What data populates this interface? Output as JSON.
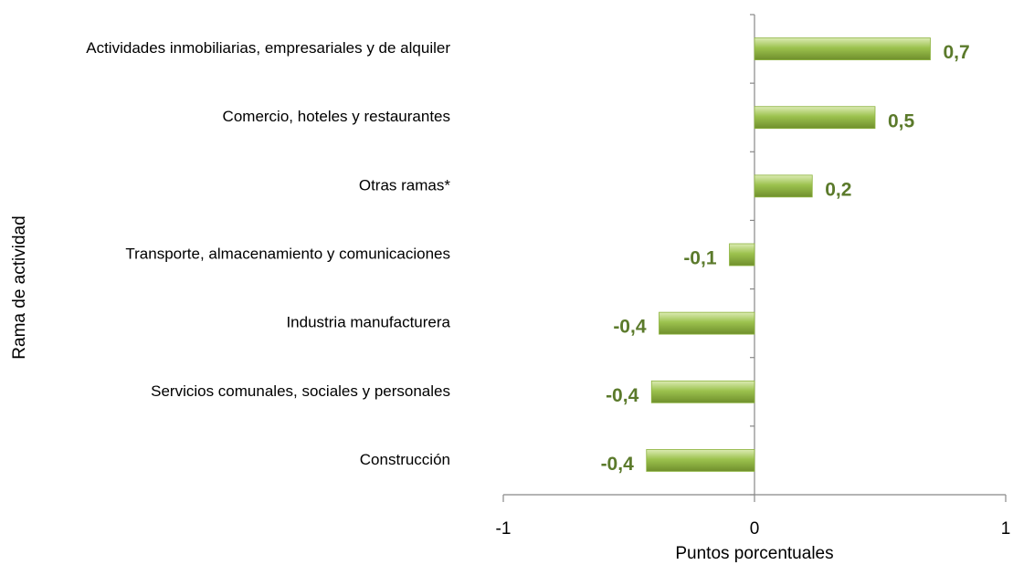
{
  "chart_data": {
    "type": "barh",
    "categories": [
      "Actividades inmobiliarias, empresariales y de alquiler",
      "Comercio, hoteles y restaurantes",
      "Otras ramas*",
      "Transporte, almacenamiento y comunicaciones",
      "Industria manufacturera",
      "Servicios comunales, sociales y personales",
      "Construcción"
    ],
    "values": [
      0.7,
      0.48,
      0.23,
      -0.1,
      -0.38,
      -0.41,
      -0.43
    ],
    "value_labels": [
      "0,7",
      "0,5",
      "0,2",
      "-0,1",
      "-0,4",
      "-0,4",
      "-0,4"
    ],
    "color": "#8db33f",
    "xlim": [
      -1,
      1
    ],
    "xticks": [
      -1,
      0,
      1
    ],
    "xlabel": "Puntos porcentuales",
    "ylabel": "Rama de actividad"
  }
}
